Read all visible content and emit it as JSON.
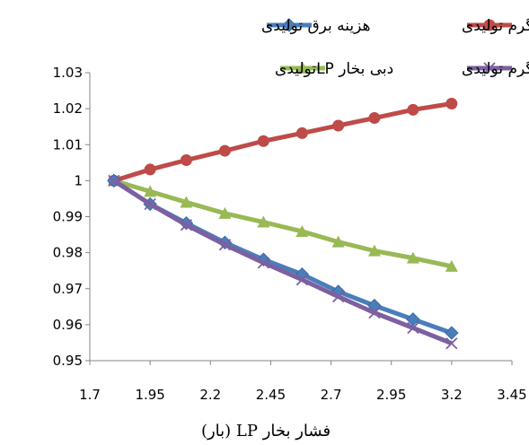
{
  "chart_data": {
    "type": "line",
    "xlabel": "فشار بخار LP (بار)",
    "ylabel": "",
    "xlim": [
      1.7,
      3.45
    ],
    "ylim": [
      0.95,
      1.03
    ],
    "xticks": [
      "1.7",
      "1.95",
      "2.2",
      "2.45",
      "2.7",
      "2.95",
      "3.2",
      "3.45"
    ],
    "yticks": [
      "0.95",
      "0.96",
      "0.97",
      "0.98",
      "0.99",
      "1",
      "1.01",
      "1.02",
      "1.03"
    ],
    "grid": false,
    "legend_position": "top",
    "x": [
      1.8,
      1.95,
      2.1,
      2.26,
      2.42,
      2.58,
      2.73,
      2.88,
      3.04,
      3.2
    ],
    "series": [
      {
        "name": "هزینه برق تولیدی",
        "color": "#4a7ebb",
        "marker": "diamond",
        "values": [
          1.0,
          0.9935,
          0.9882,
          0.9828,
          0.9781,
          0.974,
          0.9692,
          0.9653,
          0.9615,
          0.9577
        ]
      },
      {
        "name": "هزینه آب گرم تولیدی",
        "color": "#be4b48",
        "marker": "circle",
        "values": [
          1.0,
          1.0031,
          1.0057,
          1.0083,
          1.011,
          1.0132,
          1.0153,
          1.0174,
          1.0197,
          1.0214
        ]
      },
      {
        "name": "دبی بخار LPتولیدی",
        "color": "#98b954",
        "marker": "triangle",
        "values": [
          1.0,
          0.997,
          0.994,
          0.9909,
          0.9885,
          0.9859,
          0.983,
          0.9805,
          0.9785,
          0.9762
        ]
      },
      {
        "name": "دبی آب گرم تولیدی",
        "color": "#7d60a0",
        "marker": "x",
        "values": [
          1.0,
          0.9935,
          0.9877,
          0.9822,
          0.9772,
          0.9725,
          0.9678,
          0.9633,
          0.9591,
          0.9548
        ]
      }
    ]
  }
}
